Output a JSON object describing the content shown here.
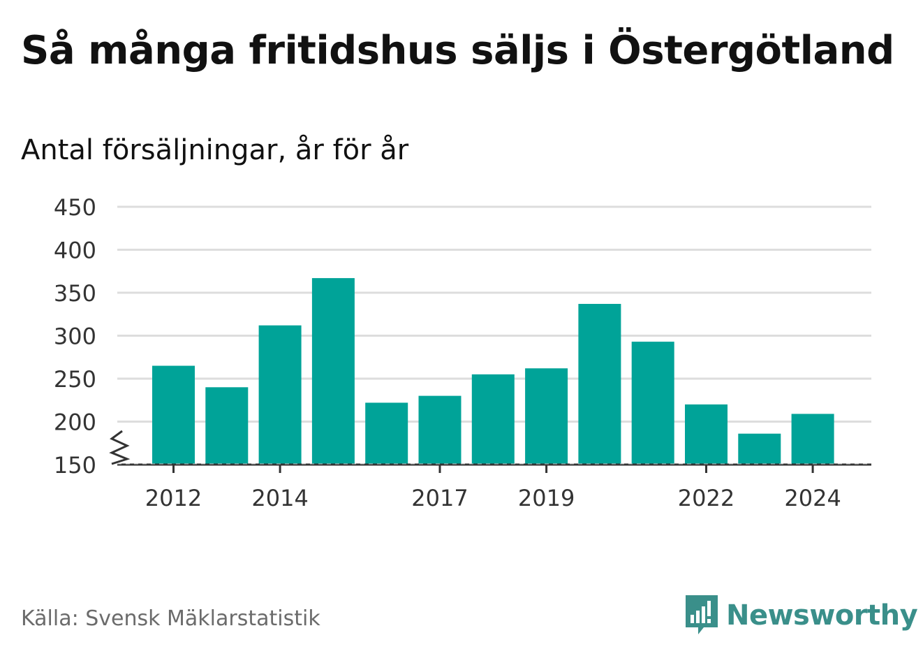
{
  "title": "Så många fritidshus säljs i Östergötland",
  "subtitle": "Antal försäljningar, år för år",
  "source": "Källa: Svensk Mäklarstatistik",
  "brand": {
    "name": "Newsworthy",
    "icon": "newsworthy-logo-icon",
    "color": "#3a8f8a"
  },
  "chart_data": {
    "type": "bar",
    "categories": [
      "2012",
      "2013",
      "2014",
      "2015",
      "2016",
      "2017",
      "2018",
      "2019",
      "2020",
      "2021",
      "2022",
      "2023",
      "2024"
    ],
    "values": [
      265,
      240,
      312,
      367,
      222,
      230,
      255,
      262,
      337,
      293,
      220,
      186,
      209
    ],
    "x_tick_labels": [
      "2012",
      "2014",
      "2017",
      "2019",
      "2022",
      "2024"
    ],
    "y_ticks": [
      150,
      200,
      250,
      300,
      350,
      400,
      450
    ],
    "ylim": [
      150,
      450
    ],
    "axis_break": true,
    "grid": true,
    "bar_color": "#00a398",
    "grid_color": "#dddddd",
    "axis_color": "#333333",
    "xlabel": "",
    "ylabel": ""
  }
}
